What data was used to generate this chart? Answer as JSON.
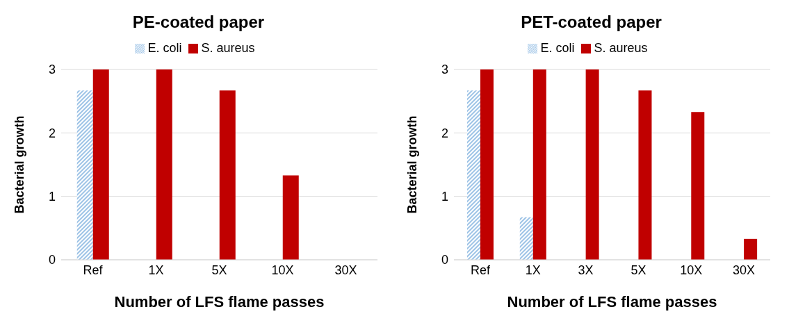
{
  "chart_data": [
    {
      "type": "bar",
      "title": "PE-coated paper",
      "xlabel": "Number of LFS flame passes",
      "ylabel": "Bacterial growth",
      "categories": [
        "Ref",
        "1X",
        "5X",
        "10X",
        "30X"
      ],
      "series": [
        {
          "name": "E. coli",
          "color": "#9dc3e6",
          "values": [
            2.67,
            0,
            0,
            0,
            0
          ]
        },
        {
          "name": "S. aureus",
          "color": "#c00000",
          "values": [
            3,
            3,
            2.67,
            1.33,
            0
          ]
        }
      ],
      "ylim": [
        0,
        3
      ],
      "yticks": [
        0,
        1,
        2,
        3
      ],
      "grid": "y",
      "legend": "top"
    },
    {
      "type": "bar",
      "title": "PET-coated paper",
      "xlabel": "Number of LFS flame passes",
      "ylabel": "Bacterial growth",
      "categories": [
        "Ref",
        "1X",
        "3X",
        "5X",
        "10X",
        "30X"
      ],
      "series": [
        {
          "name": "E. coli",
          "color": "#9dc3e6",
          "values": [
            2.67,
            0.67,
            0,
            0,
            0,
            0
          ]
        },
        {
          "name": "S. aureus",
          "color": "#c00000",
          "values": [
            3,
            3,
            3,
            2.67,
            2.33,
            0.33
          ]
        }
      ],
      "ylim": [
        0,
        3
      ],
      "yticks": [
        0,
        1,
        2,
        3
      ],
      "grid": "y",
      "legend": "top"
    }
  ]
}
